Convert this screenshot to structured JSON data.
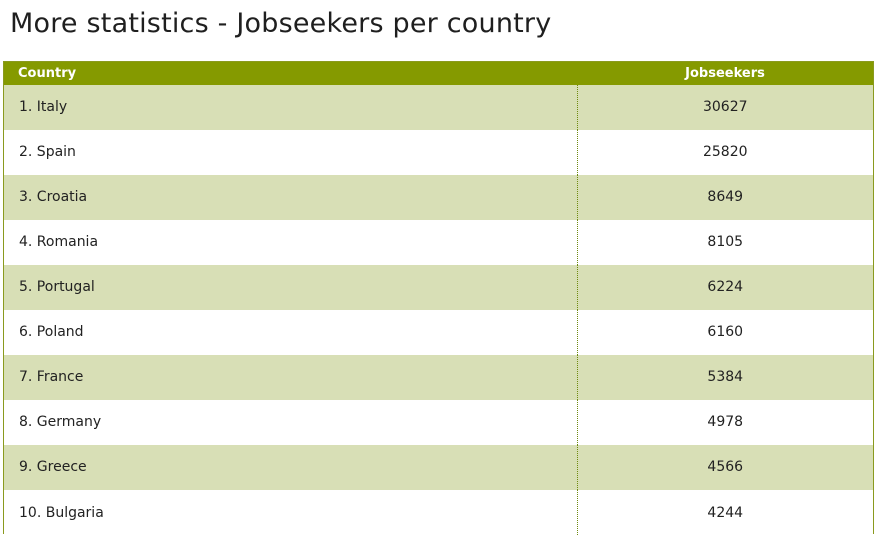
{
  "page": {
    "title": "More statistics - Jobseekers per country"
  },
  "table": {
    "headers": {
      "country": "Country",
      "jobseekers": "Jobseekers"
    },
    "rows": [
      {
        "country": "1. Italy",
        "jobseekers": "30627"
      },
      {
        "country": "2. Spain",
        "jobseekers": "25820"
      },
      {
        "country": "3. Croatia",
        "jobseekers": "8649"
      },
      {
        "country": "4. Romania",
        "jobseekers": "8105"
      },
      {
        "country": "5. Portugal",
        "jobseekers": "6224"
      },
      {
        "country": "6. Poland",
        "jobseekers": "6160"
      },
      {
        "country": "7. France",
        "jobseekers": "5384"
      },
      {
        "country": "8. Germany",
        "jobseekers": "4978"
      },
      {
        "country": "9. Greece",
        "jobseekers": "4566"
      },
      {
        "country": "10. Bulgaria",
        "jobseekers": "4244"
      }
    ]
  },
  "colors": {
    "header_bg": "#859a00",
    "row_alt_bg": "#d8dfb6",
    "border": "#8a9a1e"
  }
}
